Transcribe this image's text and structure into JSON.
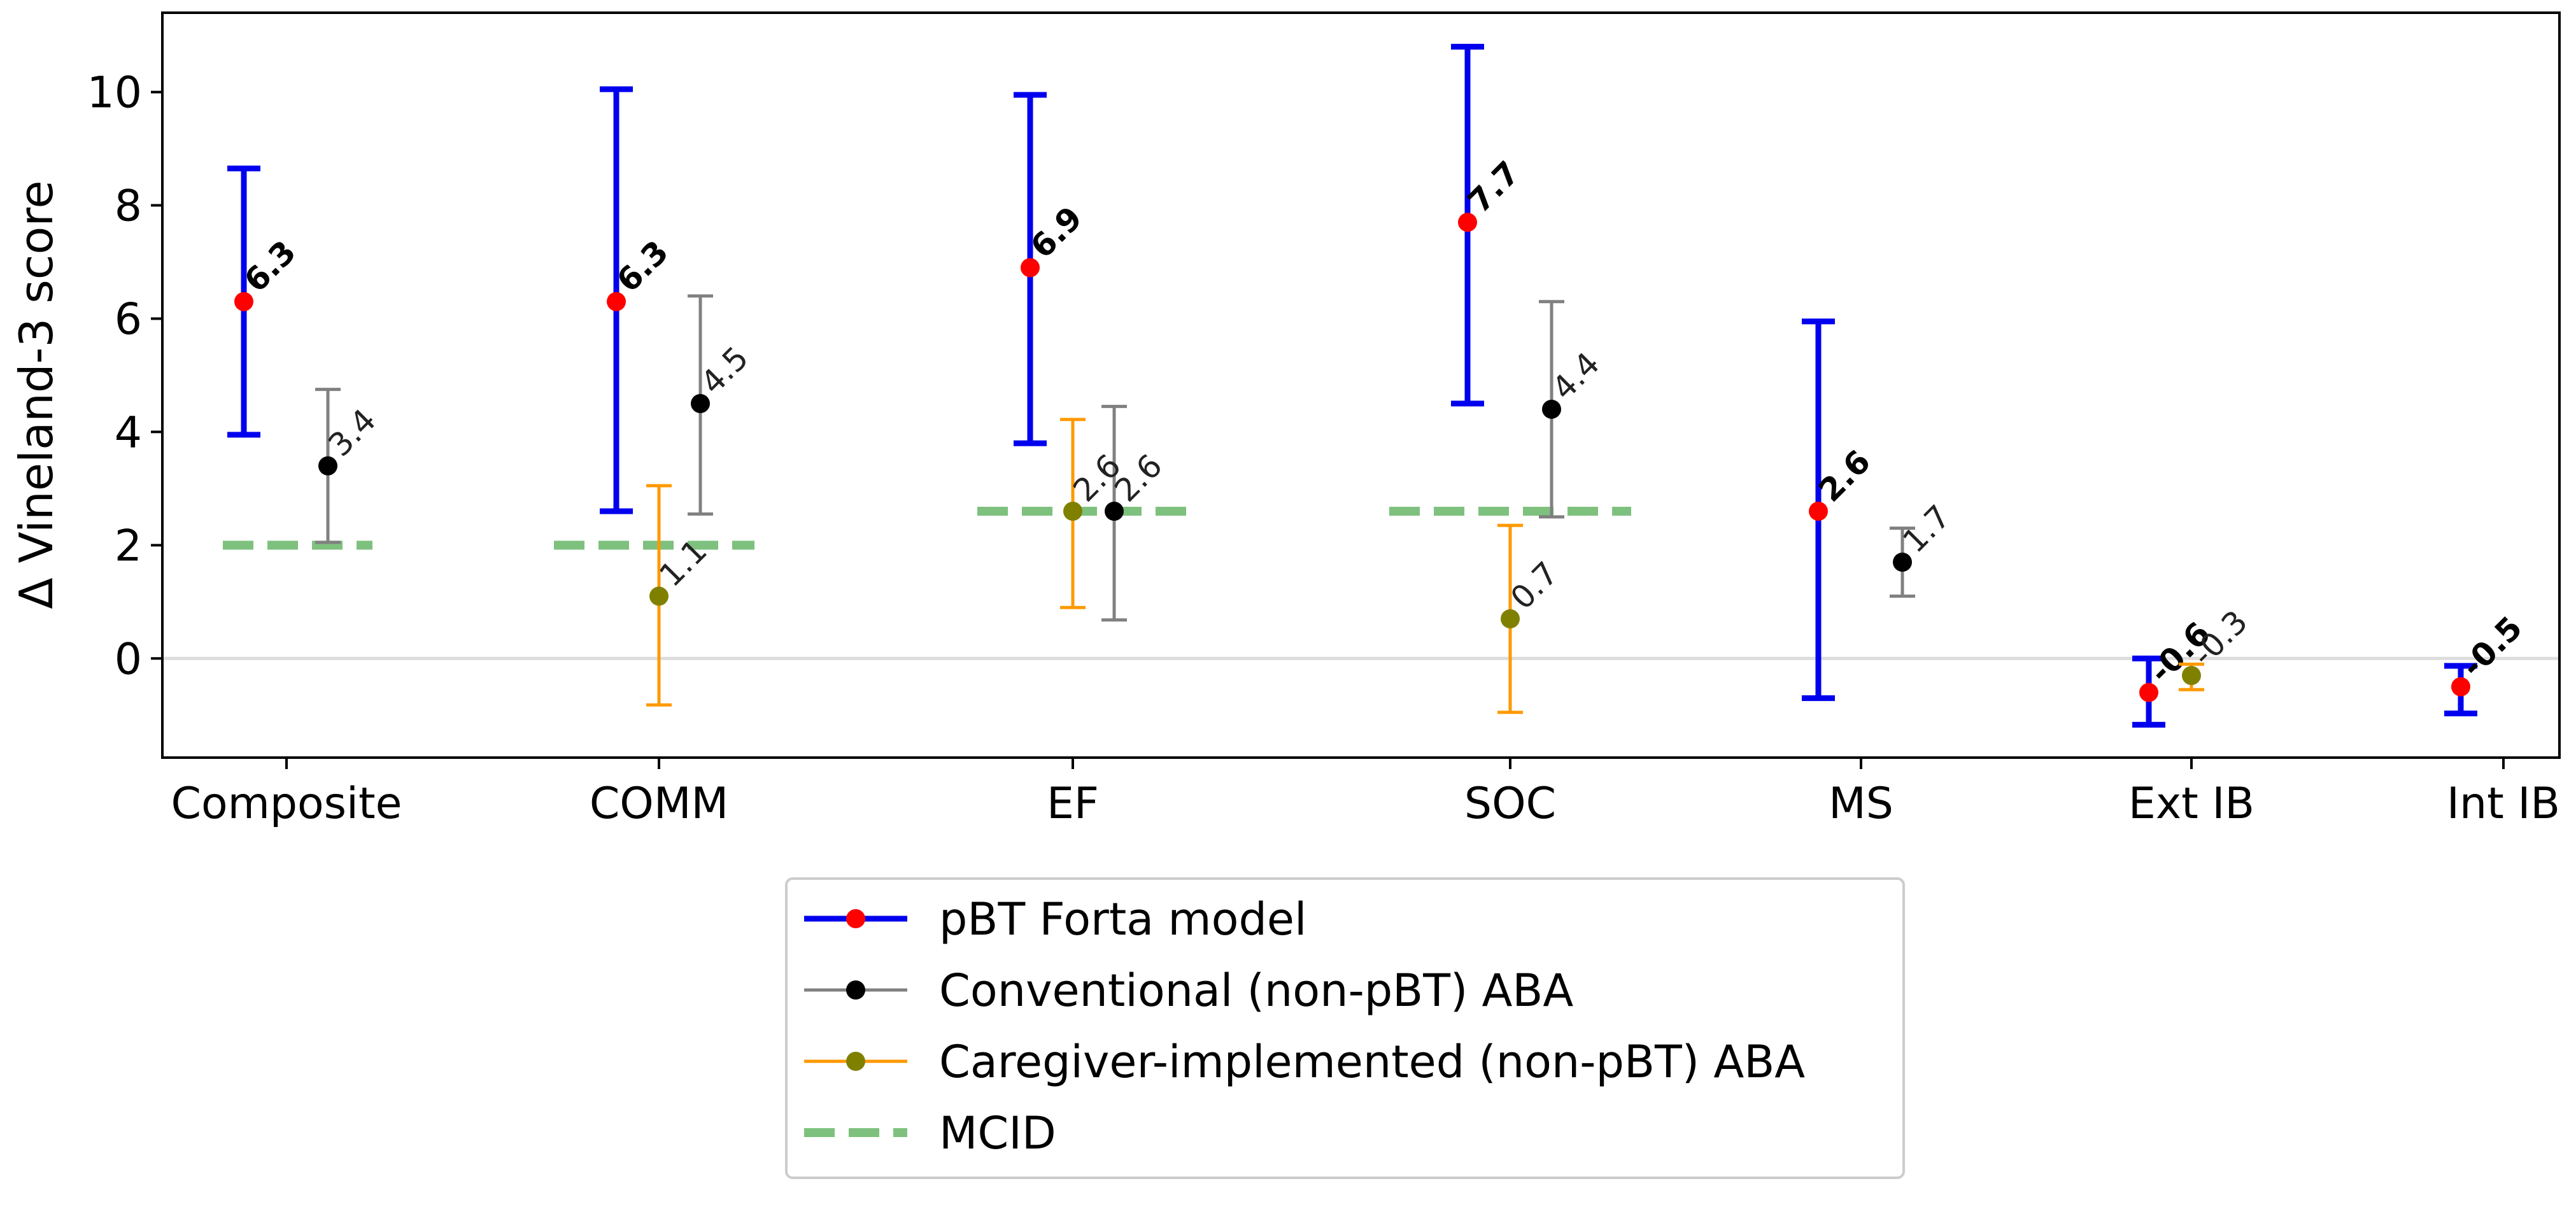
{
  "chart_data": {
    "type": "errorbar",
    "ylabel": "Δ Vineland-3 score",
    "xlabel": "",
    "title": "",
    "ylim": [
      -1.75,
      11.4
    ],
    "yticks": [
      0,
      2,
      4,
      6,
      8,
      10
    ],
    "categories": [
      "Composite",
      "COMM",
      "EF",
      "SOC",
      "MS",
      "Ext IB",
      "Int IB"
    ],
    "series": [
      {
        "name": "pBT Forta model",
        "color": "#0000ee",
        "marker_color": "#ff0000",
        "label_bold": true,
        "points": [
          {
            "category": "Composite",
            "value": 6.3,
            "low": 3.95,
            "high": 8.65,
            "label": "6.3"
          },
          {
            "category": "COMM",
            "value": 6.3,
            "low": 2.6,
            "high": 10.05,
            "label": "6.3"
          },
          {
            "category": "EF",
            "value": 6.9,
            "low": 3.8,
            "high": 9.95,
            "label": "6.9"
          },
          {
            "category": "SOC",
            "value": 7.7,
            "low": 4.5,
            "high": 10.8,
            "label": "7.7"
          },
          {
            "category": "MS",
            "value": 2.6,
            "low": -0.7,
            "high": 5.95,
            "label": "2.6"
          },
          {
            "category": "Ext IB",
            "value": -0.6,
            "low": -1.17,
            "high": 0.0,
            "label": "-0.6"
          },
          {
            "category": "Int IB",
            "value": -0.5,
            "low": -0.97,
            "high": -0.13,
            "label": "-0.5"
          }
        ]
      },
      {
        "name": "Conventional (non-pBT) ABA",
        "color": "#808080",
        "marker_color": "#000000",
        "label_bold": false,
        "points": [
          {
            "category": "Composite",
            "value": 3.4,
            "low": 2.05,
            "high": 4.75,
            "label": "3.4"
          },
          {
            "category": "COMM",
            "value": 4.5,
            "low": 2.55,
            "high": 6.4,
            "label": "4.5"
          },
          {
            "category": "EF",
            "value": 2.6,
            "low": 0.68,
            "high": 4.45,
            "label": "2.6"
          },
          {
            "category": "SOC",
            "value": 4.4,
            "low": 2.5,
            "high": 6.3,
            "label": "4.4"
          },
          {
            "category": "MS",
            "value": 1.7,
            "low": 1.1,
            "high": 2.3,
            "label": "1.7"
          }
        ]
      },
      {
        "name": "Caregiver-implemented (non-pBT) ABA",
        "color": "#ff9900",
        "marker_color": "#808000",
        "label_bold": false,
        "points": [
          {
            "category": "COMM",
            "value": 1.1,
            "low": -0.82,
            "high": 3.05,
            "label": "1.1"
          },
          {
            "category": "EF",
            "value": 2.6,
            "low": 0.9,
            "high": 4.22,
            "label": "2.6"
          },
          {
            "category": "SOC",
            "value": 0.7,
            "low": -0.95,
            "high": 2.35,
            "label": "0.7"
          },
          {
            "category": "Ext IB",
            "value": -0.3,
            "low": -0.55,
            "high": -0.1,
            "label": "-0.3"
          }
        ]
      }
    ],
    "mcid": {
      "name": "MCID",
      "color": "#7ec17e",
      "segments": [
        {
          "category": "Composite",
          "value": 2.0
        },
        {
          "category": "COMM",
          "value": 2.0
        },
        {
          "category": "EF",
          "value": 2.6
        },
        {
          "category": "SOC",
          "value": 2.6
        }
      ]
    },
    "zero_line": true,
    "grid": false,
    "legend_position": "bottom-center"
  }
}
